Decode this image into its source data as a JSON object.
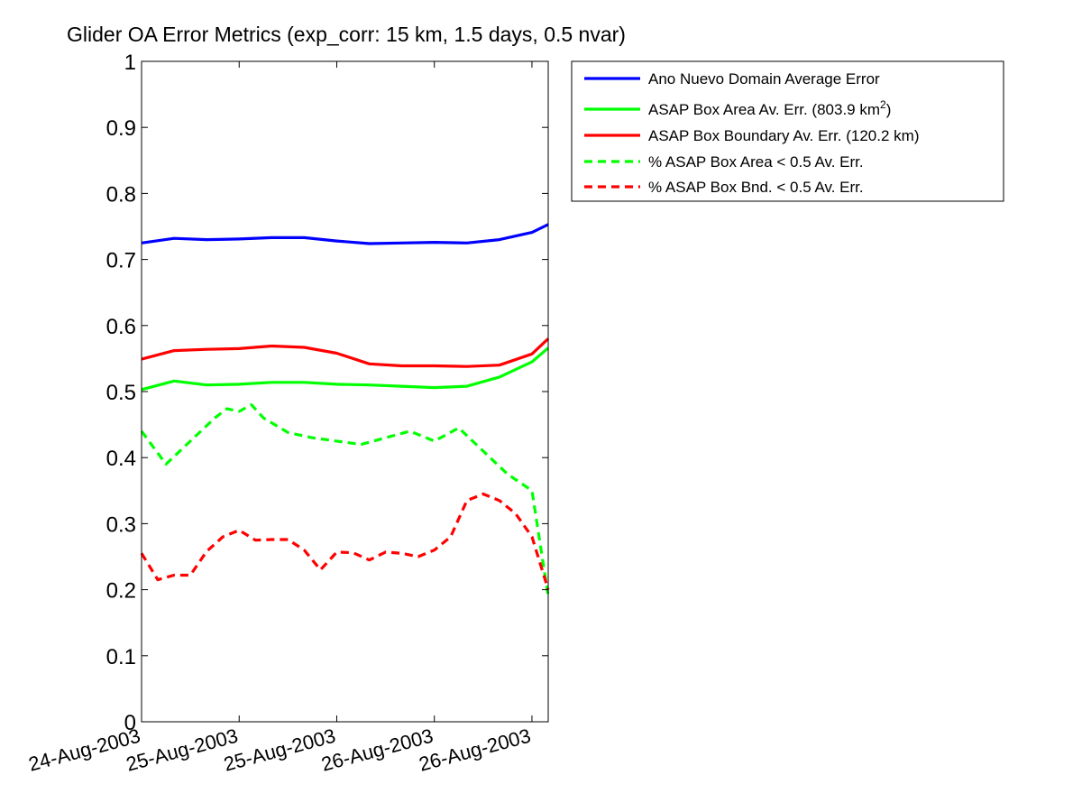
{
  "chart_data": {
    "type": "line",
    "title": "Glider OA Error Metrics (exp_corr: 15 km, 1.5 days, 0.5 nvar)",
    "xlabel": "",
    "ylabel": "",
    "ylim": [
      0,
      1
    ],
    "xlim": [
      "24-Aug-2003 00:00",
      "26-Aug-2003 02:00"
    ],
    "yticks": [
      "0",
      "0.1",
      "0.2",
      "0.3",
      "0.4",
      "0.5",
      "0.6",
      "0.7",
      "0.8",
      "0.9",
      "1"
    ],
    "xticks": [
      {
        "x": "24-Aug-2003 00:00",
        "label": "24-Aug-2003"
      },
      {
        "x": "24-Aug-2003 12:00",
        "label": "25-Aug-2003"
      },
      {
        "x": "25-Aug-2003 00:00",
        "label": "25-Aug-2003"
      },
      {
        "x": "25-Aug-2003 12:00",
        "label": "26-Aug-2003"
      },
      {
        "x": "26-Aug-2003 00:00",
        "label": "26-Aug-2003"
      }
    ],
    "grid": false,
    "legend_position": "outside-right-top",
    "series": [
      {
        "name": "Ano Nuevo Domain Average Error",
        "color": "#0000ff",
        "style": "solid",
        "x": [
          "24-Aug-2003 00:00",
          "24-Aug-2003 04:00",
          "24-Aug-2003 08:00",
          "24-Aug-2003 12:00",
          "24-Aug-2003 16:00",
          "24-Aug-2003 20:00",
          "25-Aug-2003 00:00",
          "25-Aug-2003 04:00",
          "25-Aug-2003 08:00",
          "25-Aug-2003 12:00",
          "25-Aug-2003 16:00",
          "25-Aug-2003 20:00",
          "26-Aug-2003 00:00",
          "26-Aug-2003 02:00"
        ],
        "values": [
          0.725,
          0.732,
          0.73,
          0.731,
          0.733,
          0.733,
          0.728,
          0.724,
          0.725,
          0.726,
          0.725,
          0.73,
          0.741,
          0.753
        ]
      },
      {
        "name": "ASAP Box Area Av. Err. (803.9 km2)",
        "color": "#00ff00",
        "style": "solid",
        "x": [
          "24-Aug-2003 00:00",
          "24-Aug-2003 04:00",
          "24-Aug-2003 08:00",
          "24-Aug-2003 12:00",
          "24-Aug-2003 16:00",
          "24-Aug-2003 20:00",
          "25-Aug-2003 00:00",
          "25-Aug-2003 04:00",
          "25-Aug-2003 08:00",
          "25-Aug-2003 12:00",
          "25-Aug-2003 16:00",
          "25-Aug-2003 20:00",
          "26-Aug-2003 00:00",
          "26-Aug-2003 02:00"
        ],
        "values": [
          0.503,
          0.516,
          0.51,
          0.511,
          0.514,
          0.514,
          0.511,
          0.51,
          0.508,
          0.506,
          0.508,
          0.522,
          0.545,
          0.566
        ]
      },
      {
        "name": "ASAP Box Boundary Av. Err. (120.2 km)",
        "color": "#ff0000",
        "style": "solid",
        "x": [
          "24-Aug-2003 00:00",
          "24-Aug-2003 04:00",
          "24-Aug-2003 08:00",
          "24-Aug-2003 12:00",
          "24-Aug-2003 16:00",
          "24-Aug-2003 20:00",
          "25-Aug-2003 00:00",
          "25-Aug-2003 04:00",
          "25-Aug-2003 08:00",
          "25-Aug-2003 12:00",
          "25-Aug-2003 16:00",
          "25-Aug-2003 20:00",
          "26-Aug-2003 00:00",
          "26-Aug-2003 02:00"
        ],
        "values": [
          0.549,
          0.562,
          0.564,
          0.565,
          0.569,
          0.567,
          0.558,
          0.542,
          0.539,
          0.539,
          0.538,
          0.54,
          0.557,
          0.58
        ]
      },
      {
        "name": "% ASAP Box Area < 0.5 Av. Err.",
        "color": "#00ff00",
        "style": "dashed",
        "x": [
          "24-Aug-2003 00:00",
          "24-Aug-2003 03:00",
          "24-Aug-2003 06:00",
          "24-Aug-2003 09:00",
          "24-Aug-2003 10:30",
          "24-Aug-2003 12:00",
          "24-Aug-2003 13:30",
          "24-Aug-2003 15:00",
          "24-Aug-2003 18:00",
          "24-Aug-2003 21:00",
          "25-Aug-2003 00:00",
          "25-Aug-2003 03:00",
          "25-Aug-2003 06:00",
          "25-Aug-2003 09:00",
          "25-Aug-2003 12:00",
          "25-Aug-2003 15:00",
          "25-Aug-2003 18:00",
          "25-Aug-2003 21:00",
          "26-Aug-2003 00:00",
          "26-Aug-2003 02:00"
        ],
        "values": [
          0.44,
          0.39,
          0.425,
          0.46,
          0.474,
          0.47,
          0.48,
          0.46,
          0.438,
          0.43,
          0.425,
          0.42,
          0.43,
          0.44,
          0.425,
          0.445,
          0.41,
          0.375,
          0.35,
          0.19
        ]
      },
      {
        "name": "% ASAP Box Bnd. < 0.5 Av. Err.",
        "color": "#ff0000",
        "style": "dashed",
        "x": [
          "24-Aug-2003 00:00",
          "24-Aug-2003 02:00",
          "24-Aug-2003 04:00",
          "24-Aug-2003 06:00",
          "24-Aug-2003 08:00",
          "24-Aug-2003 10:00",
          "24-Aug-2003 12:00",
          "24-Aug-2003 14:00",
          "24-Aug-2003 16:00",
          "24-Aug-2003 18:00",
          "24-Aug-2003 20:00",
          "24-Aug-2003 22:00",
          "25-Aug-2003 00:00",
          "25-Aug-2003 02:00",
          "25-Aug-2003 04:00",
          "25-Aug-2003 06:00",
          "25-Aug-2003 08:00",
          "25-Aug-2003 10:00",
          "25-Aug-2003 12:00",
          "25-Aug-2003 14:00",
          "25-Aug-2003 16:00",
          "25-Aug-2003 18:00",
          "25-Aug-2003 20:00",
          "25-Aug-2003 22:00",
          "26-Aug-2003 00:00",
          "26-Aug-2003 02:00"
        ],
        "values": [
          0.255,
          0.215,
          0.222,
          0.222,
          0.258,
          0.28,
          0.29,
          0.275,
          0.276,
          0.276,
          0.26,
          0.23,
          0.257,
          0.256,
          0.245,
          0.257,
          0.255,
          0.25,
          0.26,
          0.28,
          0.335,
          0.345,
          0.335,
          0.315,
          0.28,
          0.2
        ]
      }
    ]
  },
  "legend": {
    "entries": [
      {
        "text": "Ano Nuevo Domain Average Error",
        "sup": ""
      },
      {
        "text": "ASAP Box Area Av. Err. (803.9 km",
        "sup": "2",
        "after": ")"
      },
      {
        "text": "ASAP Box Boundary Av. Err. (120.2 km)",
        "sup": ""
      },
      {
        "text": "% ASAP Box Area < 0.5 Av. Err.",
        "sup": ""
      },
      {
        "text": "% ASAP Box Bnd. < 0.5 Av. Err.",
        "sup": ""
      }
    ]
  }
}
